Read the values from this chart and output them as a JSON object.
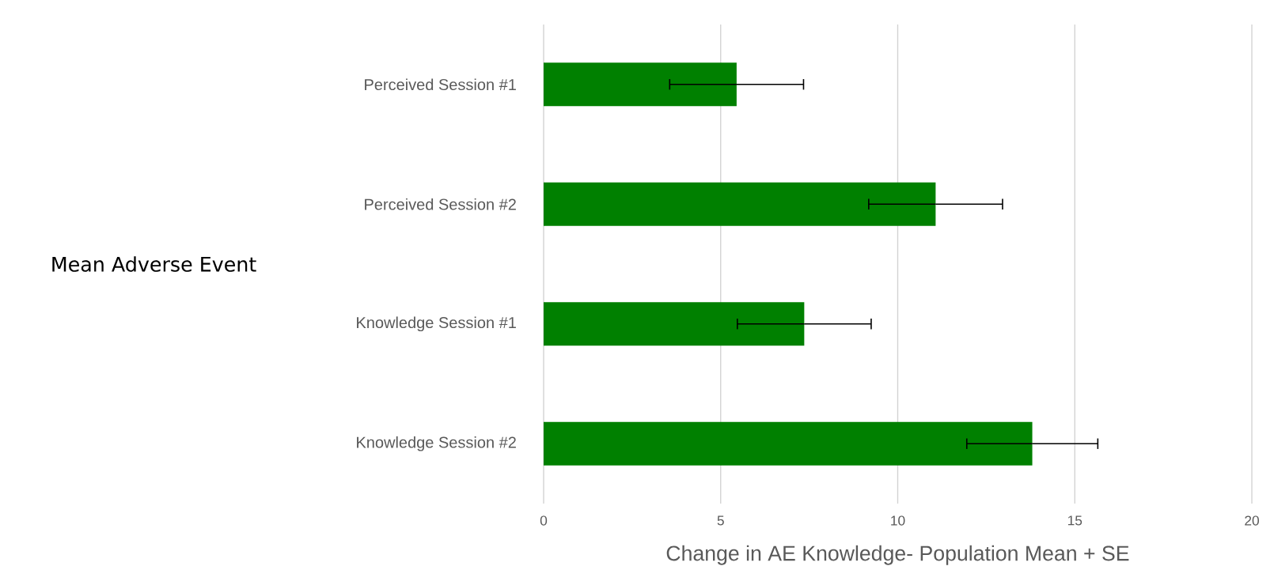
{
  "chart_data": {
    "type": "bar",
    "orientation": "horizontal",
    "xlabel": "Change in AE Knowledge- Population Mean + SE",
    "annotations": [
      "Mean Adverse Event"
    ],
    "categories": [
      "Perceived Session #1",
      "Perceived Session #2",
      "Knowledge Session #1",
      "Knowledge Session #2"
    ],
    "values": [
      5.45,
      11.07,
      7.36,
      13.8
    ],
    "errors": [
      1.89,
      1.89,
      1.89,
      1.85
    ],
    "color": "#008000",
    "xlim": [
      0,
      20
    ],
    "xticks": [
      0,
      5,
      10,
      15,
      20
    ],
    "grid": "x"
  }
}
